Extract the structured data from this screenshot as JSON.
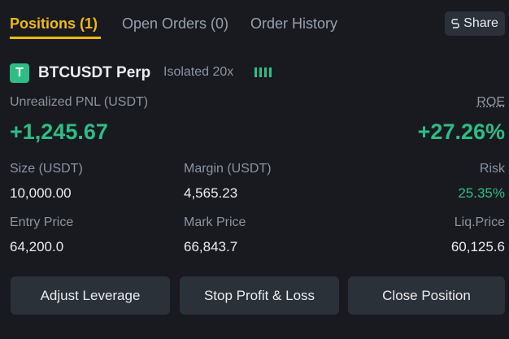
{
  "tabs": [
    "Positions (1)",
    "Open Orders (0)",
    "Order History"
  ],
  "share": "Share",
  "position": {
    "icon": "T",
    "symbol": "BTCUSDT Perp",
    "margin_mode": "Isolated 20x"
  },
  "pnl": {
    "label": "Unrealized PNL (USDT)",
    "value": "+1,245.67"
  },
  "roe": {
    "label": "ROE",
    "value": "+27.26%"
  },
  "fields": [
    {
      "label": "Size (USDT)",
      "value": "10,000.00"
    },
    {
      "label": "Margin (USDT)",
      "value": "4,565.23"
    },
    {
      "label": "Risk",
      "value": "25.35%"
    },
    {
      "label": "Entry Price",
      "value": "64,200.0"
    },
    {
      "label": "Mark Price",
      "value": "66,843.7"
    },
    {
      "label": "Liq.Price",
      "value": "60,125.6"
    }
  ],
  "buttons": [
    "Adjust Leverage",
    "Stop Profit & Loss",
    "Close Position"
  ]
}
